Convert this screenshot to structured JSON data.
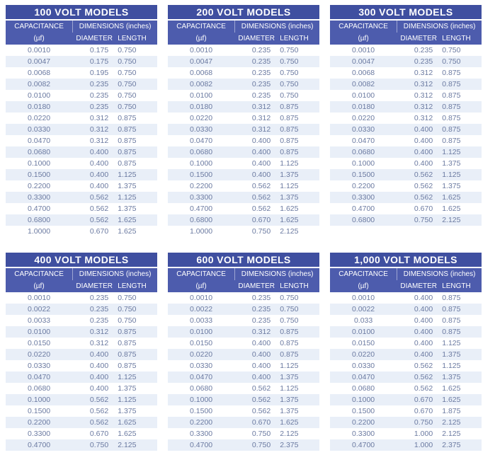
{
  "colors": {
    "title_bar": "#3f4fa0",
    "subheader_bar": "#4d5cad",
    "header_text": "#ffffff",
    "data_text": "#6b7aa1",
    "alt_row_background": "#e9eff8",
    "page_background": "#ffffff"
  },
  "column_headers": {
    "capacitance": "CAPACITANCE",
    "capacitance_unit": "(µf)",
    "dimensions": "DIMENSIONS (inches)",
    "diameter": "DIAMETER",
    "length": "LENGTH"
  },
  "tables": [
    {
      "title": "100 VOLT MODELS",
      "rows": [
        [
          "0.0010",
          "0.175",
          "0.750"
        ],
        [
          "0.0047",
          "0.175",
          "0.750"
        ],
        [
          "0.0068",
          "0.195",
          "0.750"
        ],
        [
          "0.0082",
          "0.235",
          "0.750"
        ],
        [
          "0.0100",
          "0.235",
          "0.750"
        ],
        [
          "0.0180",
          "0.235",
          "0.750"
        ],
        [
          "0.0220",
          "0.312",
          "0.875"
        ],
        [
          "0.0330",
          "0.312",
          "0.875"
        ],
        [
          "0.0470",
          "0.312",
          "0.875"
        ],
        [
          "0.0680",
          "0.400",
          "0.875"
        ],
        [
          "0.1000",
          "0.400",
          "0.875"
        ],
        [
          "0.1500",
          "0.400",
          "1.125"
        ],
        [
          "0.2200",
          "0.400",
          "1.375"
        ],
        [
          "0.3300",
          "0.562",
          "1.125"
        ],
        [
          "0.4700",
          "0.562",
          "1.375"
        ],
        [
          "0.6800",
          "0.562",
          "1.625"
        ],
        [
          "1.0000",
          "0.670",
          "1.625"
        ]
      ]
    },
    {
      "title": "200 VOLT MODELS",
      "rows": [
        [
          "0.0010",
          "0.235",
          "0.750"
        ],
        [
          "0.0047",
          "0.235",
          "0.750"
        ],
        [
          "0.0068",
          "0.235",
          "0.750"
        ],
        [
          "0.0082",
          "0.235",
          "0.750"
        ],
        [
          "0.0100",
          "0.235",
          "0.750"
        ],
        [
          "0.0180",
          "0.312",
          "0.875"
        ],
        [
          "0.0220",
          "0.312",
          "0.875"
        ],
        [
          "0.0330",
          "0.312",
          "0.875"
        ],
        [
          "0.0470",
          "0.400",
          "0.875"
        ],
        [
          "0.0680",
          "0.400",
          "0.875"
        ],
        [
          "0.1000",
          "0.400",
          "1.125"
        ],
        [
          "0.1500",
          "0.400",
          "1.375"
        ],
        [
          "0.2200",
          "0.562",
          "1.125"
        ],
        [
          "0.3300",
          "0.562",
          "1.375"
        ],
        [
          "0.4700",
          "0.562",
          "1.625"
        ],
        [
          "0.6800",
          "0.670",
          "1.625"
        ],
        [
          "1.0000",
          "0.750",
          "2.125"
        ]
      ]
    },
    {
      "title": "300 VOLT MODELS",
      "rows": [
        [
          "0.0010",
          "0.235",
          "0.750"
        ],
        [
          "0.0047",
          "0.235",
          "0.750"
        ],
        [
          "0.0068",
          "0.312",
          "0.875"
        ],
        [
          "0.0082",
          "0.312",
          "0.875"
        ],
        [
          "0.0100",
          "0.312",
          "0.875"
        ],
        [
          "0.0180",
          "0.312",
          "0.875"
        ],
        [
          "0.0220",
          "0.312",
          "0.875"
        ],
        [
          "0.0330",
          "0.400",
          "0.875"
        ],
        [
          "0.0470",
          "0.400",
          "0.875"
        ],
        [
          "0.0680",
          "0.400",
          "1.125"
        ],
        [
          "0.1000",
          "0.400",
          "1.375"
        ],
        [
          "0.1500",
          "0.562",
          "1.125"
        ],
        [
          "0.2200",
          "0.562",
          "1.375"
        ],
        [
          "0.3300",
          "0.562",
          "1.625"
        ],
        [
          "0.4700",
          "0.670",
          "1.625"
        ],
        [
          "0.6800",
          "0.750",
          "2.125"
        ]
      ]
    },
    {
      "title": "400 VOLT MODELS",
      "rows": [
        [
          "0.0010",
          "0.235",
          "0.750"
        ],
        [
          "0.0022",
          "0.235",
          "0.750"
        ],
        [
          "0.0033",
          "0.235",
          "0.750"
        ],
        [
          "0.0100",
          "0.312",
          "0.875"
        ],
        [
          "0.0150",
          "0.312",
          "0.875"
        ],
        [
          "0.0220",
          "0.400",
          "0.875"
        ],
        [
          "0.0330",
          "0.400",
          "0.875"
        ],
        [
          "0.0470",
          "0.400",
          "1.125"
        ],
        [
          "0.0680",
          "0.400",
          "1.375"
        ],
        [
          "0.1000",
          "0.562",
          "1.125"
        ],
        [
          "0.1500",
          "0.562",
          "1.375"
        ],
        [
          "0.2200",
          "0.562",
          "1.625"
        ],
        [
          "0.3300",
          "0.670",
          "1.625"
        ],
        [
          "0.4700",
          "0.750",
          "2.125"
        ]
      ]
    },
    {
      "title": "600 VOLT MODELS",
      "rows": [
        [
          "0.0010",
          "0.235",
          "0.750"
        ],
        [
          "0.0022",
          "0.235",
          "0.750"
        ],
        [
          "0.0033",
          "0.235",
          "0.750"
        ],
        [
          "0.0100",
          "0.312",
          "0.875"
        ],
        [
          "0.0150",
          "0.400",
          "0.875"
        ],
        [
          "0.0220",
          "0.400",
          "0.875"
        ],
        [
          "0.0330",
          "0.400",
          "1.125"
        ],
        [
          "0.0470",
          "0.400",
          "1.375"
        ],
        [
          "0.0680",
          "0.562",
          "1.125"
        ],
        [
          "0.1000",
          "0.562",
          "1.375"
        ],
        [
          "0.1500",
          "0.562",
          "1.375"
        ],
        [
          "0.2200",
          "0.670",
          "1.625"
        ],
        [
          "0.3300",
          "0.750",
          "2.125"
        ],
        [
          "0.4700",
          "0.750",
          "2.375"
        ]
      ]
    },
    {
      "title": "1,000 VOLT MODELS",
      "rows": [
        [
          "0.0010",
          "0.400",
          "0.875"
        ],
        [
          "0.0022",
          "0.400",
          "0.875"
        ],
        [
          "0.033",
          "0.400",
          "0.875"
        ],
        [
          "0.0100",
          "0.400",
          "0.875"
        ],
        [
          "0.0150",
          "0.400",
          "1.125"
        ],
        [
          "0.0220",
          "0.400",
          "1.375"
        ],
        [
          "0.0330",
          "0.562",
          "1.125"
        ],
        [
          "0.0470",
          "0.562",
          "1.375"
        ],
        [
          "0.0680",
          "0.562",
          "1.625"
        ],
        [
          "0.1000",
          "0.670",
          "1.625"
        ],
        [
          "0.1500",
          "0.670",
          "1.875"
        ],
        [
          "0.2200",
          "0.750",
          "2.125"
        ],
        [
          "0.3300",
          "1.000",
          "2.125"
        ],
        [
          "0.4700",
          "1.000",
          "2.375"
        ]
      ]
    }
  ]
}
